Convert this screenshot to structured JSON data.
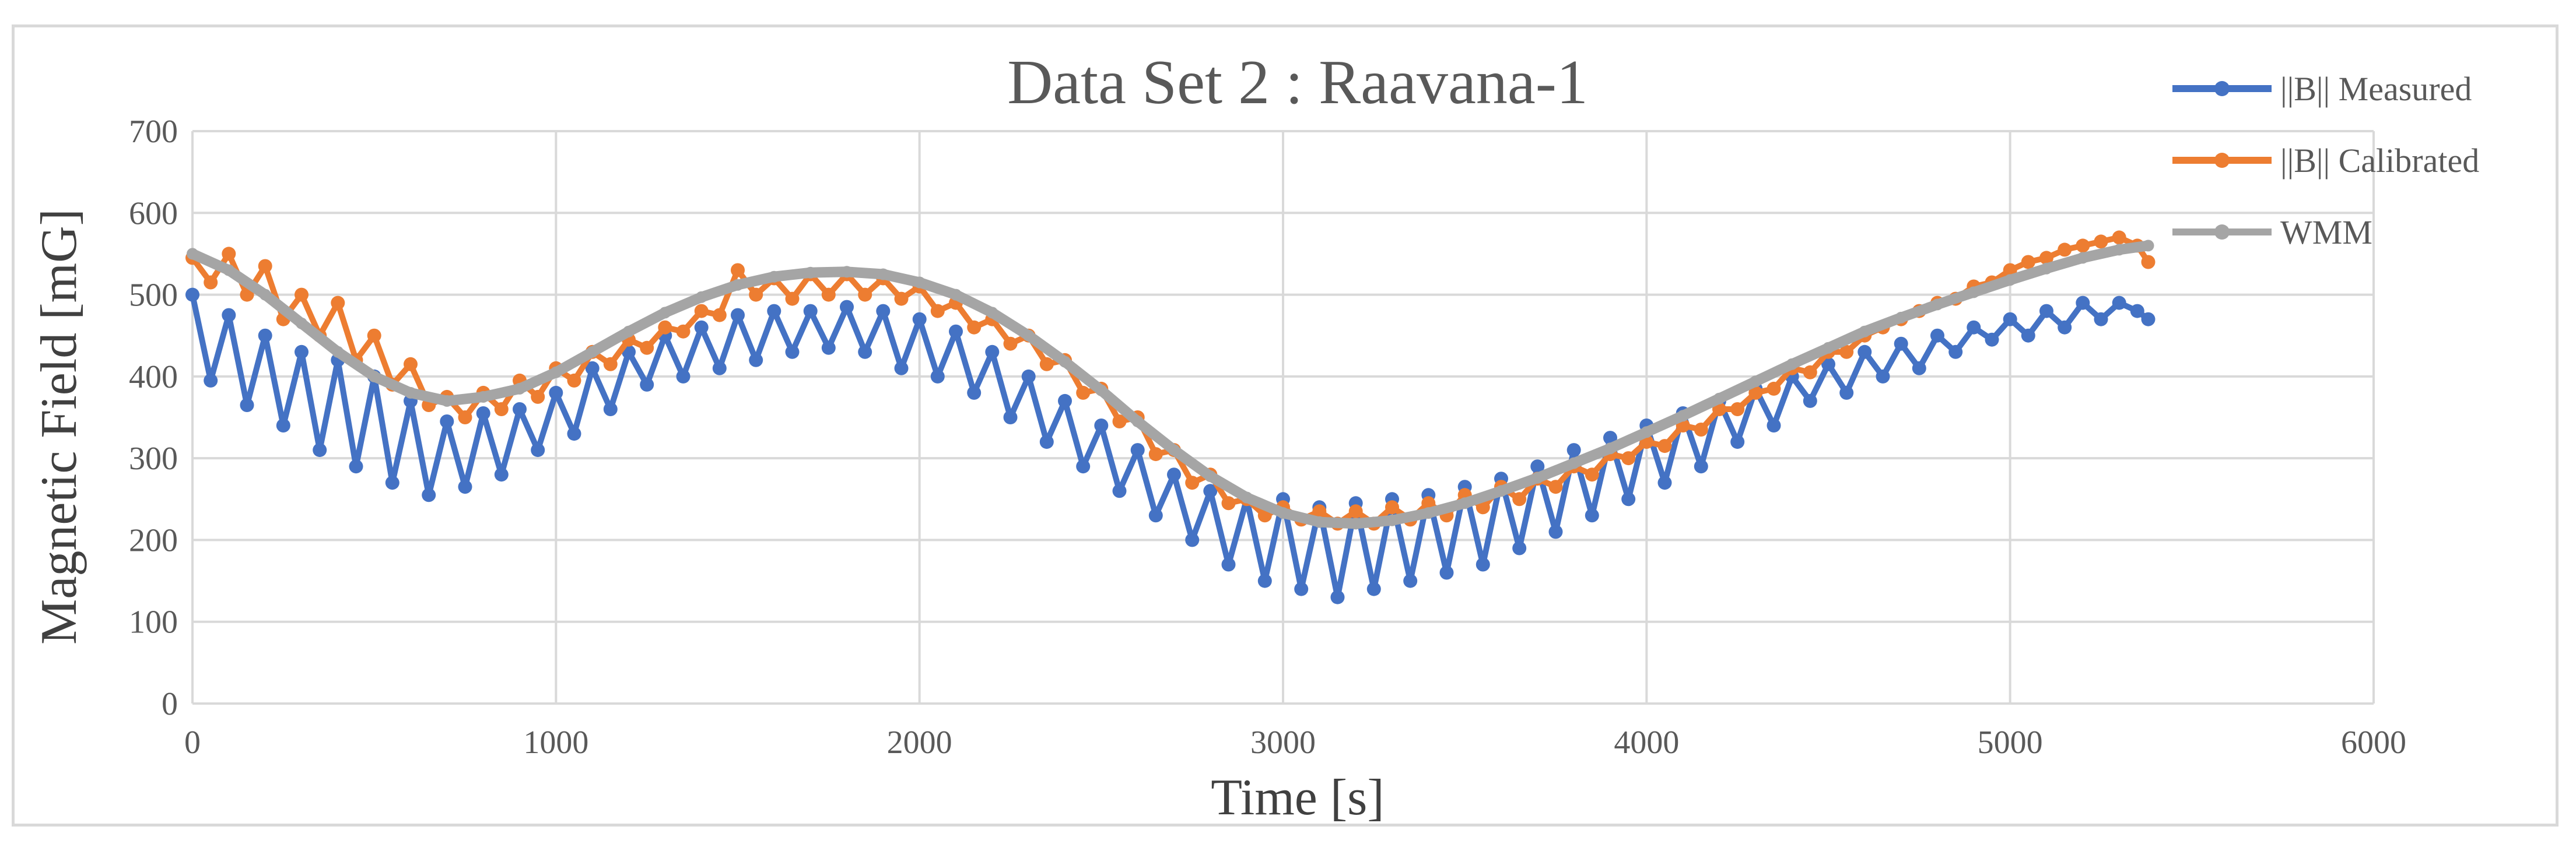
{
  "chart_data": {
    "type": "line",
    "title": "Data Set 2 : Raavana-1",
    "xlabel": "Time [s]",
    "ylabel": "Magnetic Field [mG]",
    "xlim": [
      0,
      6000
    ],
    "ylim": [
      0,
      700
    ],
    "xticks": [
      0,
      1000,
      2000,
      3000,
      4000,
      5000,
      6000
    ],
    "yticks": [
      0,
      100,
      200,
      300,
      400,
      500,
      600,
      700
    ],
    "xtick_labels": [
      "0",
      "1000",
      "2000",
      "3000",
      "4000",
      "5000",
      "6000"
    ],
    "ytick_labels": [
      "0",
      "100",
      "200",
      "300",
      "400",
      "500",
      "600",
      "700"
    ],
    "grid": true,
    "legend_position": "top-right",
    "series": [
      {
        "name": "||B|| Measured",
        "color": "#4472c4",
        "x": [
          0,
          50,
          100,
          150,
          200,
          250,
          300,
          350,
          400,
          450,
          500,
          550,
          600,
          650,
          700,
          750,
          800,
          850,
          900,
          950,
          1000,
          1050,
          1100,
          1150,
          1200,
          1250,
          1300,
          1350,
          1400,
          1450,
          1500,
          1550,
          1600,
          1650,
          1700,
          1750,
          1800,
          1850,
          1900,
          1950,
          2000,
          2050,
          2100,
          2150,
          2200,
          2250,
          2300,
          2350,
          2400,
          2450,
          2500,
          2550,
          2600,
          2650,
          2700,
          2750,
          2800,
          2850,
          2900,
          2950,
          3000,
          3050,
          3100,
          3150,
          3200,
          3250,
          3300,
          3350,
          3400,
          3450,
          3500,
          3550,
          3600,
          3650,
          3700,
          3750,
          3800,
          3850,
          3900,
          3950,
          4000,
          4050,
          4100,
          4150,
          4200,
          4250,
          4300,
          4350,
          4400,
          4450,
          4500,
          4550,
          4600,
          4650,
          4700,
          4750,
          4800,
          4850,
          4900,
          4950,
          5000,
          5050,
          5100,
          5150,
          5200,
          5250,
          5300,
          5350,
          5380
        ],
        "y": [
          500,
          395,
          475,
          365,
          450,
          340,
          430,
          310,
          420,
          290,
          400,
          270,
          370,
          255,
          345,
          265,
          355,
          280,
          360,
          310,
          380,
          330,
          410,
          360,
          430,
          390,
          450,
          400,
          460,
          410,
          475,
          420,
          480,
          430,
          480,
          435,
          485,
          430,
          480,
          410,
          470,
          400,
          455,
          380,
          430,
          350,
          400,
          320,
          370,
          290,
          340,
          260,
          310,
          230,
          280,
          200,
          260,
          170,
          250,
          150,
          250,
          140,
          240,
          130,
          245,
          140,
          250,
          150,
          255,
          160,
          265,
          170,
          275,
          190,
          290,
          210,
          310,
          230,
          325,
          250,
          340,
          270,
          355,
          290,
          370,
          320,
          385,
          340,
          400,
          370,
          415,
          380,
          430,
          400,
          440,
          410,
          450,
          430,
          460,
          445,
          470,
          450,
          480,
          460,
          490,
          470,
          490,
          480,
          470
        ]
      },
      {
        "name": "||B|| Calibrated",
        "color": "#ed7d31",
        "x": [
          0,
          50,
          100,
          150,
          200,
          250,
          300,
          350,
          400,
          450,
          500,
          550,
          600,
          650,
          700,
          750,
          800,
          850,
          900,
          950,
          1000,
          1050,
          1100,
          1150,
          1200,
          1250,
          1300,
          1350,
          1400,
          1450,
          1500,
          1550,
          1600,
          1650,
          1700,
          1750,
          1800,
          1850,
          1900,
          1950,
          2000,
          2050,
          2100,
          2150,
          2200,
          2250,
          2300,
          2350,
          2400,
          2450,
          2500,
          2550,
          2600,
          2650,
          2700,
          2750,
          2800,
          2850,
          2900,
          2950,
          3000,
          3050,
          3100,
          3150,
          3200,
          3250,
          3300,
          3350,
          3400,
          3450,
          3500,
          3550,
          3600,
          3650,
          3700,
          3750,
          3800,
          3850,
          3900,
          3950,
          4000,
          4050,
          4100,
          4150,
          4200,
          4250,
          4300,
          4350,
          4400,
          4450,
          4500,
          4550,
          4600,
          4650,
          4700,
          4750,
          4800,
          4850,
          4900,
          4950,
          5000,
          5050,
          5100,
          5150,
          5200,
          5250,
          5300,
          5350,
          5380
        ],
        "y": [
          545,
          515,
          550,
          500,
          535,
          470,
          500,
          450,
          490,
          420,
          450,
          390,
          415,
          365,
          375,
          350,
          380,
          360,
          395,
          375,
          410,
          395,
          430,
          415,
          445,
          435,
          460,
          455,
          480,
          475,
          530,
          500,
          520,
          495,
          525,
          500,
          525,
          500,
          520,
          495,
          510,
          480,
          490,
          460,
          470,
          440,
          450,
          415,
          420,
          380,
          385,
          345,
          350,
          305,
          310,
          270,
          280,
          245,
          250,
          230,
          240,
          225,
          235,
          220,
          235,
          220,
          240,
          225,
          245,
          230,
          255,
          240,
          265,
          250,
          275,
          265,
          290,
          280,
          305,
          300,
          320,
          315,
          340,
          335,
          360,
          360,
          380,
          385,
          410,
          405,
          430,
          430,
          450,
          460,
          470,
          480,
          490,
          495,
          510,
          515,
          530,
          540,
          545,
          555,
          560,
          565,
          570,
          560,
          540
        ]
      },
      {
        "name": "WMM",
        "color": "#a5a5a5",
        "x": [
          0,
          100,
          200,
          300,
          400,
          500,
          600,
          700,
          800,
          900,
          1000,
          1100,
          1200,
          1300,
          1400,
          1500,
          1600,
          1700,
          1800,
          1900,
          2000,
          2100,
          2200,
          2300,
          2400,
          2500,
          2600,
          2700,
          2800,
          2900,
          3000,
          3100,
          3200,
          3300,
          3400,
          3500,
          3600,
          3700,
          3800,
          3900,
          4000,
          4100,
          4200,
          4300,
          4400,
          4500,
          4600,
          4700,
          4800,
          4900,
          5000,
          5100,
          5200,
          5300,
          5380
        ],
        "y": [
          550,
          530,
          500,
          465,
          430,
          400,
          380,
          370,
          375,
          385,
          405,
          430,
          455,
          478,
          497,
          512,
          522,
          527,
          528,
          525,
          515,
          500,
          478,
          450,
          418,
          383,
          345,
          310,
          278,
          252,
          233,
          222,
          220,
          224,
          233,
          245,
          260,
          276,
          294,
          312,
          332,
          352,
          373,
          394,
          415,
          435,
          455,
          472,
          488,
          503,
          518,
          532,
          545,
          555,
          560
        ]
      }
    ]
  }
}
